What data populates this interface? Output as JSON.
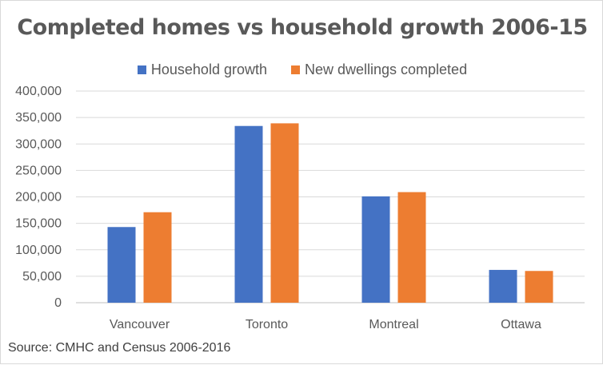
{
  "chart_data": {
    "type": "bar",
    "title": "Completed homes vs household growth 2006-15",
    "categories": [
      "Vancouver",
      "Toronto",
      "Montreal",
      "Ottawa"
    ],
    "series": [
      {
        "name": "Household growth",
        "color": "#4472C4",
        "values": [
          143000,
          334000,
          201000,
          62000
        ]
      },
      {
        "name": "New dwellings completed",
        "color": "#ED7D31",
        "values": [
          171000,
          339000,
          209000,
          60000
        ]
      }
    ],
    "ylim": [
      0,
      400000
    ],
    "yticks": [
      0,
      50000,
      100000,
      150000,
      200000,
      250000,
      300000,
      350000,
      400000
    ],
    "ytick_labels": [
      "0",
      "50,000",
      "100,000",
      "150,000",
      "200,000",
      "250,000",
      "300,000",
      "350,000",
      "400,000"
    ],
    "grid": true,
    "legend_position": "top",
    "xlabel": "",
    "ylabel": ""
  },
  "source": "Source: CMHC and Census 2006-2016"
}
